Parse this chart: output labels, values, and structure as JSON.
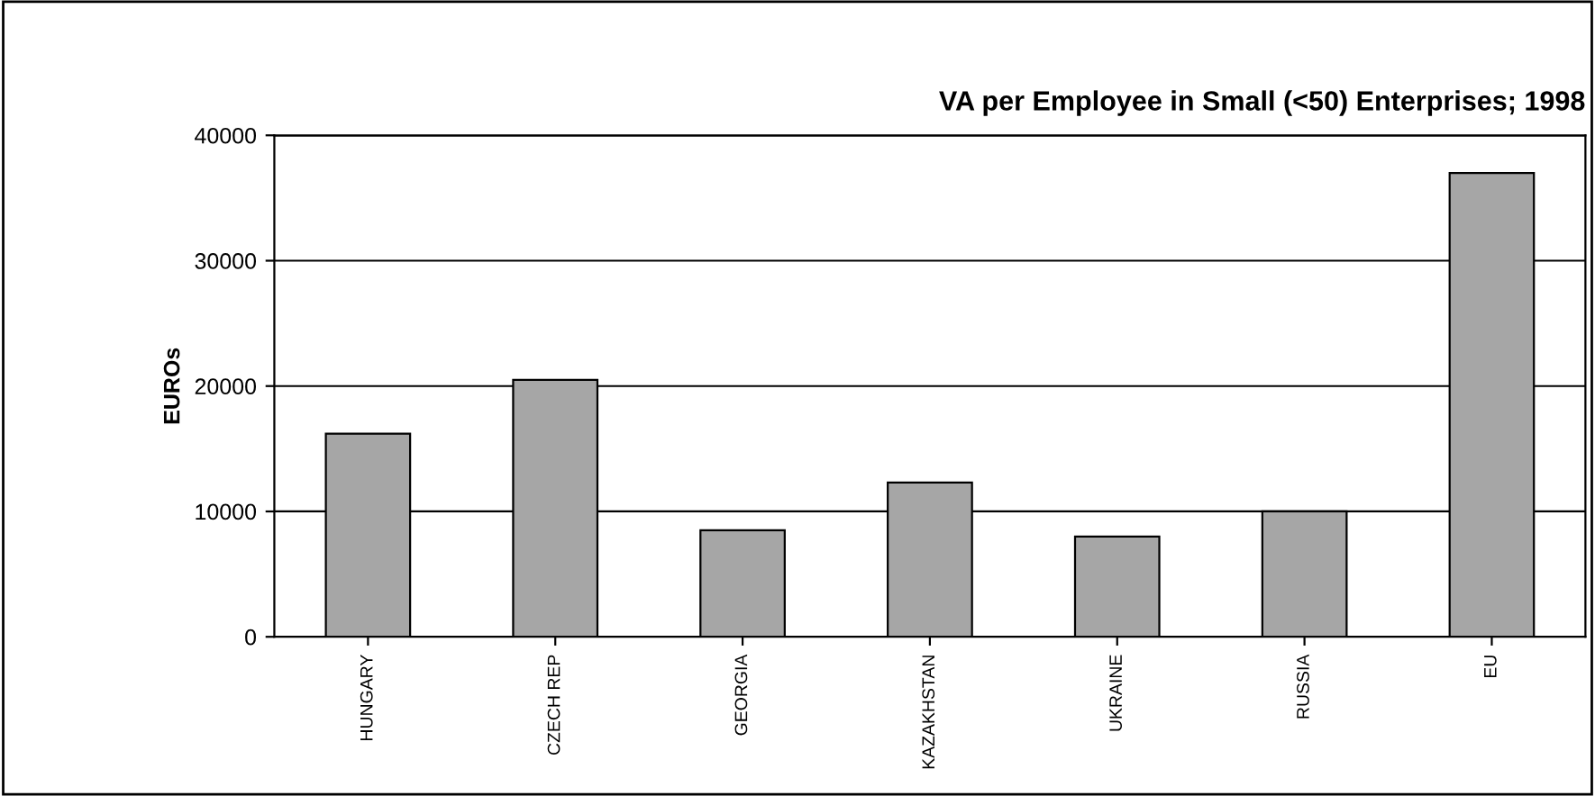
{
  "chart_data": {
    "type": "bar",
    "title": "VA per Employee in Small (<50) Enterprises; 1998",
    "ylabel": "EUROs",
    "categories": [
      "HUNGARY",
      "CZECH REP",
      "GEORGIA",
      "KAZAKHSTAN",
      "UKRAINE",
      "RUSSIA",
      "EU"
    ],
    "values": [
      16200,
      20500,
      8500,
      12300,
      8000,
      10000,
      37000
    ],
    "color": "#a6a6a6",
    "ylim": [
      0,
      40000
    ],
    "yticks": [
      0,
      10000,
      20000,
      30000,
      40000
    ],
    "grid": "y",
    "legend": false
  }
}
